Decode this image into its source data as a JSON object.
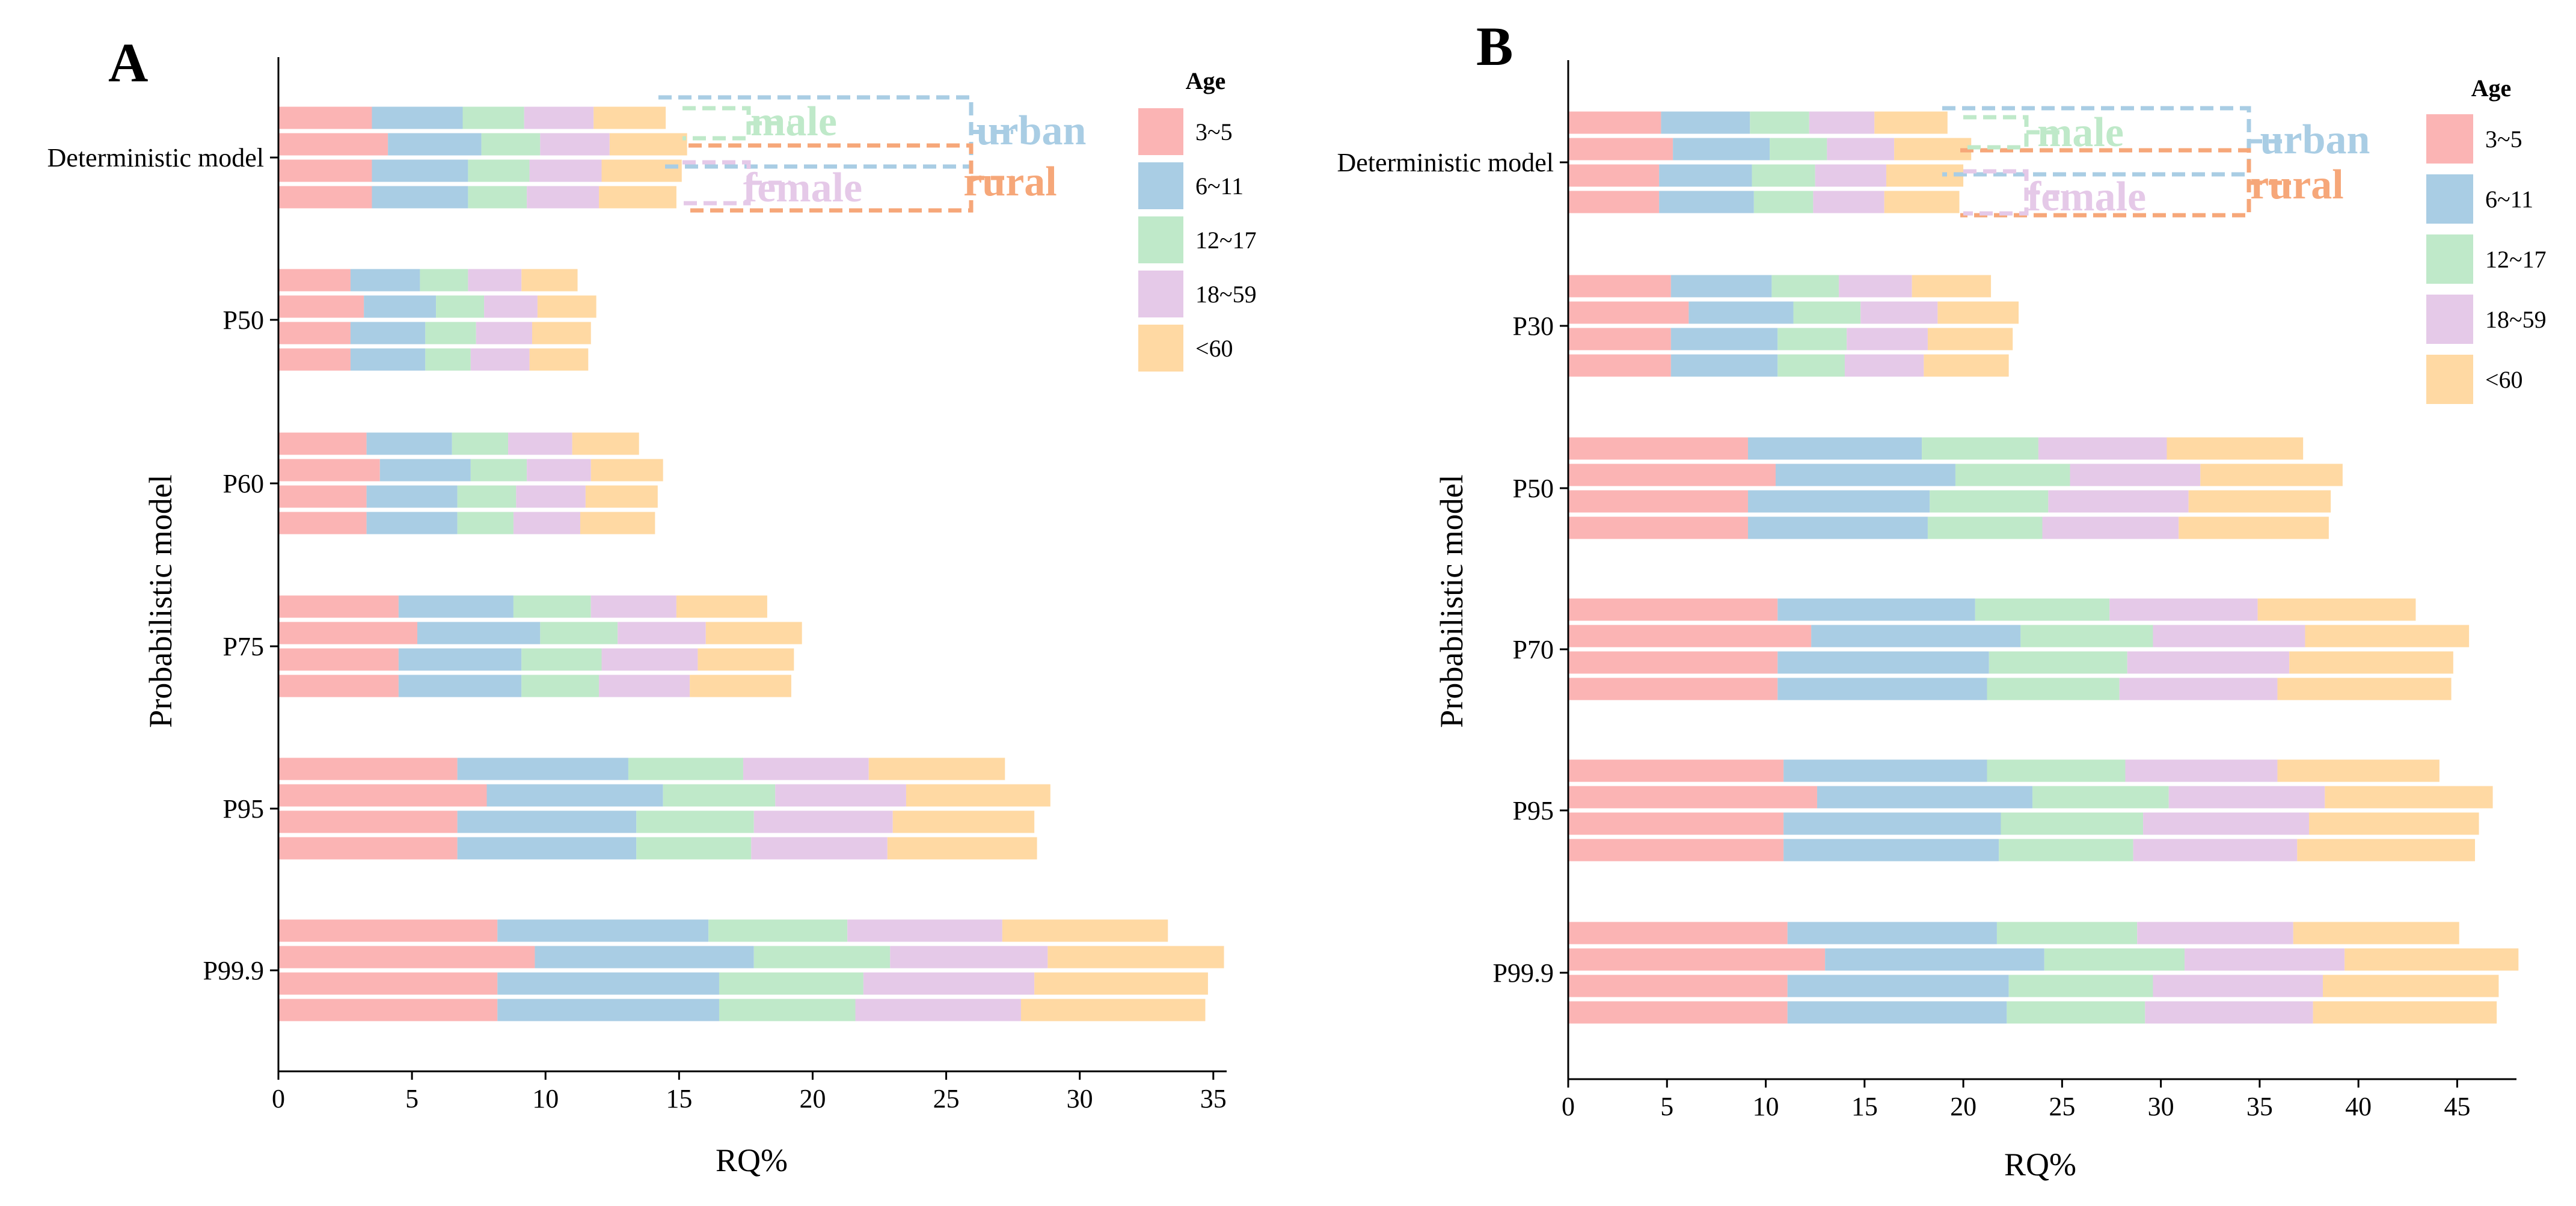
{
  "colors": {
    "age_groups": [
      "#FBB4B4",
      "#A9CDE4",
      "#BFE9C9",
      "#E5C9E8",
      "#FFD9A3"
    ],
    "urban": "#A9CDE4",
    "rural": "#F6A779",
    "male": "#BFE9C9",
    "female": "#E5C9E8"
  },
  "chart_data": [
    {
      "type": "bar",
      "orientation": "horizontal",
      "stacked": true,
      "panel_label": "A",
      "xlabel": "RQ%",
      "ylabel": "Probabilistic model",
      "xlim": [
        0,
        35.5
      ],
      "xticks": [
        "0",
        "5",
        "10",
        "15",
        "20",
        "25",
        "30",
        "35"
      ],
      "xtick_values": [
        0,
        5,
        10,
        15,
        20,
        25,
        30,
        35
      ],
      "legend_title": "Age",
      "legend_entries": [
        "3~5",
        "6~11",
        "12~17",
        "18~59",
        "<60"
      ],
      "annotations": {
        "urban": "urban",
        "rural": "rural",
        "male": "male",
        "female": "female"
      },
      "bar_order_within_group": [
        "urban",
        "rural",
        "male",
        "female"
      ],
      "groups": [
        {
          "label": "Deterministic model",
          "bars": [
            [
              3.5,
              3.4,
              2.3,
              2.6,
              2.7
            ],
            [
              4.1,
              3.5,
              2.2,
              2.6,
              2.9
            ],
            [
              3.5,
              3.6,
              2.3,
              2.7,
              3.0
            ],
            [
              3.5,
              3.6,
              2.2,
              2.7,
              2.9
            ]
          ]
        },
        {
          "label": "P50",
          "bars": [
            [
              2.7,
              2.6,
              1.8,
              2.0,
              2.1
            ],
            [
              3.2,
              2.7,
              1.8,
              2.0,
              2.2
            ],
            [
              2.7,
              2.8,
              1.9,
              2.1,
              2.2
            ],
            [
              2.7,
              2.8,
              1.7,
              2.2,
              2.2
            ]
          ]
        },
        {
          "label": "P60",
          "bars": [
            [
              3.3,
              3.2,
              2.1,
              2.4,
              2.5
            ],
            [
              3.8,
              3.4,
              2.1,
              2.4,
              2.7
            ],
            [
              3.3,
              3.4,
              2.2,
              2.6,
              2.7
            ],
            [
              3.3,
              3.4,
              2.1,
              2.5,
              2.8
            ]
          ]
        },
        {
          "label": "P75",
          "bars": [
            [
              4.5,
              4.3,
              2.9,
              3.2,
              3.4
            ],
            [
              5.2,
              4.6,
              2.9,
              3.3,
              3.6
            ],
            [
              4.5,
              4.6,
              3.0,
              3.6,
              3.6
            ],
            [
              4.5,
              4.6,
              2.9,
              3.4,
              3.8
            ]
          ]
        },
        {
          "label": "P95",
          "bars": [
            [
              6.7,
              6.4,
              4.3,
              4.7,
              5.1
            ],
            [
              7.8,
              6.6,
              4.2,
              4.9,
              5.4
            ],
            [
              6.7,
              6.7,
              4.4,
              5.2,
              5.3
            ],
            [
              6.7,
              6.7,
              4.3,
              5.1,
              5.6
            ]
          ]
        },
        {
          "label": "P99.9",
          "bars": [
            [
              8.2,
              7.9,
              5.2,
              5.8,
              6.2
            ],
            [
              9.6,
              8.2,
              5.1,
              5.9,
              6.6
            ],
            [
              8.2,
              8.3,
              5.4,
              6.4,
              6.5
            ],
            [
              8.2,
              8.3,
              5.1,
              6.2,
              6.9
            ]
          ]
        }
      ]
    },
    {
      "type": "bar",
      "orientation": "horizontal",
      "stacked": true,
      "panel_label": "B",
      "xlabel": "RQ%",
      "ylabel": "Probabilistic model",
      "xlim": [
        0,
        48
      ],
      "xticks": [
        "0",
        "5",
        "10",
        "15",
        "20",
        "25",
        "30",
        "35",
        "40",
        "45"
      ],
      "xtick_values": [
        0,
        5,
        10,
        15,
        20,
        25,
        30,
        35,
        40,
        45
      ],
      "legend_title": "Age",
      "legend_entries": [
        "3~5",
        "6~11",
        "12~17",
        "18~59",
        "<60"
      ],
      "annotations": {
        "urban": "urban",
        "rural": "rural",
        "male": "male",
        "female": "female"
      },
      "bar_order_within_group": [
        "urban",
        "rural",
        "male",
        "female"
      ],
      "groups": [
        {
          "label": "Deterministic model",
          "bars": [
            [
              4.7,
              4.5,
              3.0,
              3.3,
              3.7
            ],
            [
              5.3,
              4.9,
              2.9,
              3.4,
              3.9
            ],
            [
              4.6,
              4.7,
              3.2,
              3.6,
              3.9
            ],
            [
              4.6,
              4.8,
              3.0,
              3.6,
              3.8
            ]
          ]
        },
        {
          "label": "P30",
          "bars": [
            [
              5.2,
              5.1,
              3.4,
              3.7,
              4.0
            ],
            [
              6.1,
              5.3,
              3.4,
              3.9,
              4.1
            ],
            [
              5.2,
              5.4,
              3.5,
              4.1,
              4.3
            ],
            [
              5.2,
              5.4,
              3.4,
              4.0,
              4.3
            ]
          ]
        },
        {
          "label": "P50",
          "bars": [
            [
              9.1,
              8.8,
              5.9,
              6.5,
              6.9
            ],
            [
              10.5,
              9.1,
              5.8,
              6.6,
              7.2
            ],
            [
              9.1,
              9.2,
              6.0,
              7.1,
              7.2
            ],
            [
              9.1,
              9.1,
              5.8,
              6.9,
              7.6
            ]
          ]
        },
        {
          "label": "P70",
          "bars": [
            [
              10.6,
              10.0,
              6.8,
              7.5,
              8.0
            ],
            [
              12.3,
              10.6,
              6.7,
              7.7,
              8.3
            ],
            [
              10.6,
              10.7,
              7.0,
              8.2,
              8.3
            ],
            [
              10.6,
              10.6,
              6.7,
              8.0,
              8.8
            ]
          ]
        },
        {
          "label": "P95",
          "bars": [
            [
              10.9,
              10.3,
              7.0,
              7.7,
              8.2
            ],
            [
              12.6,
              10.9,
              6.9,
              7.9,
              8.5
            ],
            [
              10.9,
              11.0,
              7.2,
              8.4,
              8.6
            ],
            [
              10.9,
              10.9,
              6.8,
              8.3,
              9.0
            ]
          ]
        },
        {
          "label": "P99.9",
          "bars": [
            [
              11.1,
              10.6,
              7.1,
              7.9,
              8.4
            ],
            [
              13.0,
              11.1,
              7.1,
              8.1,
              8.8
            ],
            [
              11.1,
              11.2,
              7.3,
              8.6,
              8.9
            ],
            [
              11.1,
              11.1,
              7.0,
              8.5,
              9.3
            ]
          ]
        }
      ]
    }
  ]
}
